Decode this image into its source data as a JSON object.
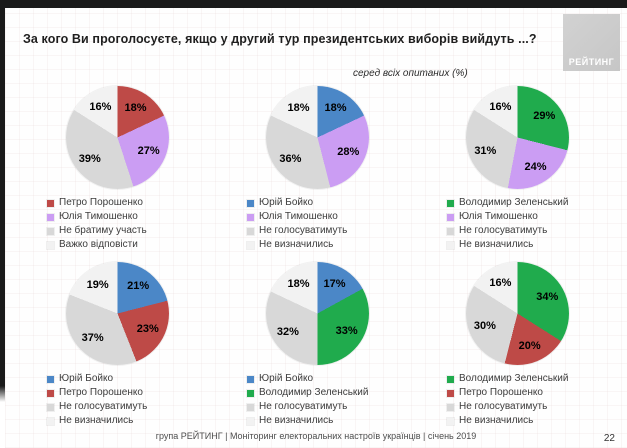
{
  "header": {
    "title": "За кого Ви проголосуєте, якщо у другий тур президентських виборів вийдуть ...?",
    "subtitle": "серед всіх опитаних (%)",
    "logo_text": "РЕЙТИНГ"
  },
  "footer": {
    "source": "група РЕЙТИНГ |  Моніторинг електоральних настроїв українців  |  січень  2019",
    "page_number": "22"
  },
  "colors": {
    "poroshenko_red": "#BE4A47",
    "tymoshenko_purple": "#CB9DF3",
    "boyko_blue": "#4B87C7",
    "zelensky_green": "#20AB4D",
    "no_vote_gray": "#D8D8D8",
    "undecided_white": "#F2F2F2"
  },
  "chart_data": [
    {
      "type": "pie",
      "name": "poroshenko-vs-tymoshenko",
      "slices": [
        {
          "label": "Петро Порошенко",
          "value": 18,
          "color": "#BE4A47"
        },
        {
          "label": "Юлія Тимошенко",
          "value": 27,
          "color": "#CB9DF3"
        },
        {
          "label": "Не братиму участь",
          "value": 39,
          "color": "#D8D8D8"
        },
        {
          "label": "Важко відповісти",
          "value": 16,
          "color": "#F2F2F2"
        }
      ]
    },
    {
      "type": "pie",
      "name": "boyko-vs-tymoshenko",
      "slices": [
        {
          "label": "Юрій Бойко",
          "value": 18,
          "color": "#4B87C7"
        },
        {
          "label": "Юлія Тимошенко",
          "value": 28,
          "color": "#CB9DF3"
        },
        {
          "label": "Не голосуватимуть",
          "value": 36,
          "color": "#D8D8D8"
        },
        {
          "label": "Не визначились",
          "value": 18,
          "color": "#F2F2F2"
        }
      ]
    },
    {
      "type": "pie",
      "name": "zelensky-vs-tymoshenko",
      "slices": [
        {
          "label": "Володимир Зеленський",
          "value": 29,
          "color": "#20AB4D"
        },
        {
          "label": "Юлія Тимошенко",
          "value": 24,
          "color": "#CB9DF3"
        },
        {
          "label": "Не голосуватимуть",
          "value": 31,
          "color": "#D8D8D8"
        },
        {
          "label": "Не визначились",
          "value": 16,
          "color": "#F2F2F2"
        }
      ]
    },
    {
      "type": "pie",
      "name": "boyko-vs-poroshenko",
      "slices": [
        {
          "label": "Юрій Бойко",
          "value": 21,
          "color": "#4B87C7"
        },
        {
          "label": "Петро Порошенко",
          "value": 23,
          "color": "#BE4A47"
        },
        {
          "label": "Не голосуватимуть",
          "value": 37,
          "color": "#D8D8D8"
        },
        {
          "label": "Не визначились",
          "value": 19,
          "color": "#F2F2F2"
        }
      ]
    },
    {
      "type": "pie",
      "name": "boyko-vs-zelensky",
      "slices": [
        {
          "label": "Юрій Бойко",
          "value": 17,
          "color": "#4B87C7"
        },
        {
          "label": "Володимир Зеленський",
          "value": 33,
          "color": "#20AB4D"
        },
        {
          "label": "Не голосуватимуть",
          "value": 32,
          "color": "#D8D8D8"
        },
        {
          "label": "Не визначились",
          "value": 18,
          "color": "#F2F2F2"
        }
      ]
    },
    {
      "type": "pie",
      "name": "zelensky-vs-poroshenko",
      "slices": [
        {
          "label": "Володимир Зеленський",
          "value": 34,
          "color": "#20AB4D"
        },
        {
          "label": "Петро Порошенко",
          "value": 20,
          "color": "#BE4A47"
        },
        {
          "label": "Не голосуватимуть",
          "value": 30,
          "color": "#D8D8D8"
        },
        {
          "label": "Не визначились",
          "value": 16,
          "color": "#F2F2F2"
        }
      ]
    }
  ]
}
